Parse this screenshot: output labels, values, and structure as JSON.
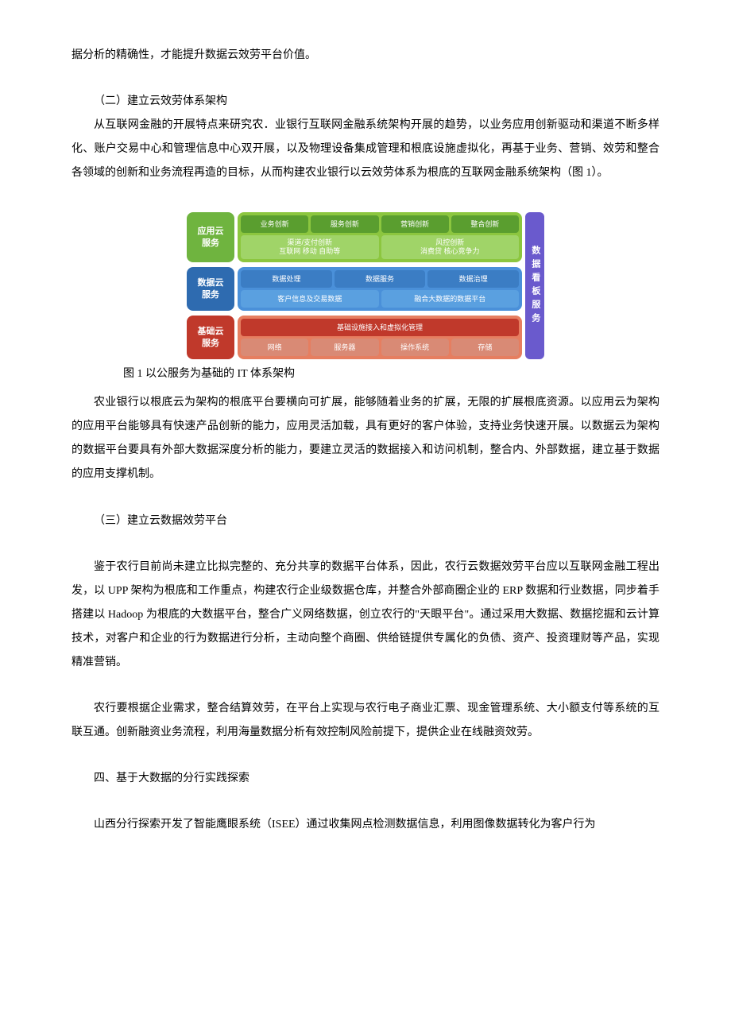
{
  "text": {
    "p1": "据分析的精确性，才能提升数据云效劳平台价值。",
    "h2": "（二）建立云效劳体系架构",
    "p2": "从互联网金融的开展特点来研究农．业银行互联网金融系统架构开展的趋势，以业务应用创新驱动和渠道不断多样化、账户交易中心和管理信息中心双开展，以及物理设备集成管理和根底设施虚拟化，再基于业务、营销、效劳和整合各领域的创新和业务流程再造的目标，从而构建农业银行以云效劳体系为根底的互联网金融系统架构（图 1）。",
    "caption": "图 1 以公服务为基础的 IT 体系架构",
    "p3": "农业银行以根底云为架构的根底平台要横向可扩展，能够随着业务的扩展，无限的扩展根底资源。以应用云为架构的应用平台能够具有快速产品创新的能力，应用灵活加载，具有更好的客户体验，支持业务快速开展。以数据云为架构的数据平台要具有外部大数据深度分析的能力，要建立灵活的数据接入和访问机制，整合内、外部数据，建立基于数据的应用支撑机制。",
    "h3": "（三）建立云数据效劳平台",
    "p4": "鉴于农行目前尚未建立比拟完整的、充分共享的数据平台体系，因此，农行云数据效劳平台应以互联网金融工程出发，以 UPP 架构为根底和工作重点，构建农行企业级数据仓库，并整合外部商圈企业的 ERP 数据和行业数据，同步着手搭建以 Hadoop 为根底的大数据平台，整合广义网络数据，创立农行的\"天眼平台\"。通过采用大数据、数据挖掘和云计算技术，对客户和企业的行为数据进行分析，主动向整个商圈、供给链提供专属化的负债、资产、投资理财等产品，实现精准营销。",
    "p5": "农行要根据企业需求，整合结算效劳，在平台上实现与农行电子商业汇票、现金管理系统、大小额支付等系统的互联互通。创新融资业务流程，利用海量数据分析有效控制风险前提下，提供企业在线融资效劳。",
    "h4": "四、基于大数据的分行实践探索",
    "p6": "山西分行探索开发了智能鹰眼系统（ISEE）通过收集网点检测数据信息，利用图像数据转化为客户行为"
  },
  "diagram": {
    "colors": {
      "green_label": "#6fb43f",
      "green_panel": "#8cc63f",
      "green_cell_top": "#5a9e2f",
      "green_cell_bottom": "#a0d468",
      "blue_label": "#2e6bb0",
      "blue_panel": "#4a90d9",
      "blue_cell_top": "#3b7dc4",
      "blue_cell_bottom": "#5aa0e0",
      "red_label": "#c0392b",
      "red_panel": "#e67e60",
      "red_cell_top": "#c0392b",
      "red_cell_bottom": "#d98a75",
      "side": "#6a5acd"
    },
    "side_label": "数据看板服务",
    "rows": [
      {
        "label": "应用云\\n服务",
        "label_color_key": "green_label",
        "panel_color_key": "green_panel",
        "lines": [
          {
            "color_key": "green_cell_top",
            "cells": [
              "业务创新",
              "服务创新",
              "营销创新",
              "整合创新"
            ]
          },
          {
            "color_key": "green_cell_bottom",
            "cells": [
              "渠道/支付创新\\n互联网 移动 自助等",
              "风控创新\\n消费贷 核心竞争力"
            ]
          }
        ]
      },
      {
        "label": "数据云\\n服务",
        "label_color_key": "blue_label",
        "panel_color_key": "blue_panel",
        "lines": [
          {
            "color_key": "blue_cell_top",
            "cells": [
              "数据处理",
              "数据服务",
              "数据治理"
            ]
          },
          {
            "color_key": "blue_cell_bottom",
            "cells": [
              "客户信息及交易数据",
              "融合大数据的数据平台"
            ]
          }
        ]
      },
      {
        "label": "基础云\\n服务",
        "label_color_key": "red_label",
        "panel_color_key": "red_panel",
        "lines": [
          {
            "color_key": "red_cell_top",
            "cells": [
              "基础设施接入和虚拟化管理"
            ]
          },
          {
            "color_key": "red_cell_bottom",
            "cells": [
              "网络",
              "服务器",
              "操作系统",
              "存储"
            ]
          }
        ]
      }
    ]
  }
}
